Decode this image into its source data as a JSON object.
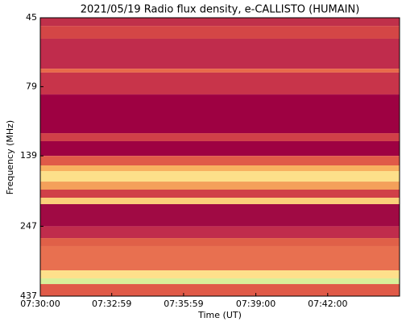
{
  "chart_data": {
    "type": "spectrogram",
    "title": "2021/05/19  Radio flux density, e-CALLISTO (HUMAIN)",
    "xlabel": "Time (UT)",
    "ylabel": "Frequency (MHz)",
    "xlim": [
      27000,
      27900
    ],
    "xticks": [
      {
        "value": 27000,
        "label": "07:30:00"
      },
      {
        "value": 27179,
        "label": "07:32:59"
      },
      {
        "value": 27359,
        "label": "07:35:59"
      },
      {
        "value": 27540,
        "label": "07:39:00"
      },
      {
        "value": 27720,
        "label": "07:42:00"
      }
    ],
    "ylim": [
      45,
      437
    ],
    "yscale": "log",
    "y_inverted": true,
    "yticks": [
      45,
      79,
      139,
      247,
      437
    ],
    "bands": [
      {
        "from": 45,
        "to": 48.1,
        "color": "#c0304a"
      },
      {
        "from": 48.1,
        "to": 53.4,
        "color": "#d44646"
      },
      {
        "from": 53.4,
        "to": 68.2,
        "color": "#c02c4c"
      },
      {
        "from": 68.2,
        "to": 70.4,
        "color": "#e86a4a"
      },
      {
        "from": 70.4,
        "to": 84.2,
        "color": "#c8344a"
      },
      {
        "from": 84.2,
        "to": 115.5,
        "color": "#9e0142"
      },
      {
        "from": 115.5,
        "to": 123.3,
        "color": "#d04048"
      },
      {
        "from": 123.3,
        "to": 139,
        "color": "#9e0142"
      },
      {
        "from": 139,
        "to": 150.3,
        "color": "#e05a48"
      },
      {
        "from": 150.3,
        "to": 157.4,
        "color": "#f8b060"
      },
      {
        "from": 157.4,
        "to": 171.5,
        "color": "#fde08a"
      },
      {
        "from": 171.5,
        "to": 183.1,
        "color": "#f4a05a"
      },
      {
        "from": 183.1,
        "to": 195.6,
        "color": "#d04048"
      },
      {
        "from": 195.6,
        "to": 206.2,
        "color": "#fbd07a"
      },
      {
        "from": 206.2,
        "to": 247,
        "color": "#a00a44"
      },
      {
        "from": 247,
        "to": 272,
        "color": "#c02c4c"
      },
      {
        "from": 272,
        "to": 290.4,
        "color": "#e06048"
      },
      {
        "from": 290.4,
        "to": 354,
        "color": "#e87050"
      },
      {
        "from": 354,
        "to": 377.9,
        "color": "#fee08b"
      },
      {
        "from": 377.9,
        "to": 396,
        "color": "#d8ef9a"
      },
      {
        "from": 396,
        "to": 437,
        "color": "#e05a48"
      }
    ]
  }
}
